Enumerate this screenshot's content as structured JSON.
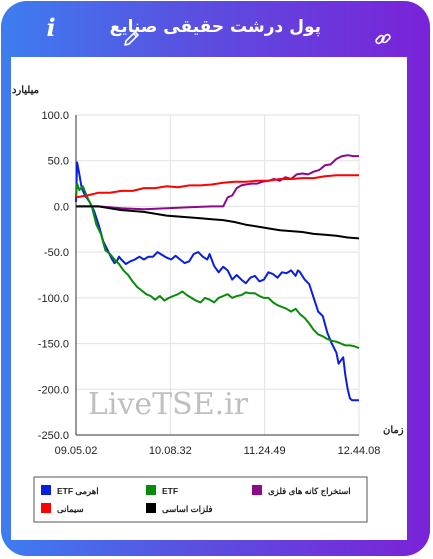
{
  "header": {
    "title": "پول درشت حقیقی صنایع",
    "info_icon": "info-icon",
    "edit_icon": "pencil-icon",
    "link_icon": "link-icon"
  },
  "watermark": "LiveTSE.ir",
  "chart_data": {
    "type": "line",
    "ylabel": "میلیارد تومان",
    "xlabel": "زمان",
    "y_ticks": [
      "100.0",
      "50.0",
      "0.0",
      "-50.0",
      "-100.0",
      "-150.0",
      "-200.0",
      "-250.0"
    ],
    "ylim": [
      -250,
      100
    ],
    "x_ticks": [
      "09.05.02",
      "10.08.32",
      "11.24.49",
      "12.44.08"
    ],
    "grid": true,
    "legend": "bottom",
    "series": [
      {
        "name": "ETF اهرمی",
        "color": "#0a1ee0",
        "points": [
          [
            0,
            5
          ],
          [
            1,
            48
          ],
          [
            3,
            35
          ],
          [
            5,
            20
          ],
          [
            8,
            12
          ],
          [
            12,
            5
          ],
          [
            16,
            -5
          ],
          [
            20,
            -20
          ],
          [
            24,
            -38
          ],
          [
            28,
            -48
          ],
          [
            32,
            -58
          ],
          [
            34,
            -62
          ],
          [
            36,
            -60
          ],
          [
            38,
            -55
          ],
          [
            40,
            -58
          ],
          [
            44,
            -63
          ],
          [
            48,
            -60
          ],
          [
            52,
            -58
          ],
          [
            56,
            -55
          ],
          [
            60,
            -58
          ],
          [
            64,
            -55
          ],
          [
            68,
            -55
          ],
          [
            72,
            -50
          ],
          [
            76,
            -53
          ],
          [
            80,
            -56
          ],
          [
            84,
            -58
          ],
          [
            88,
            -54
          ],
          [
            92,
            -58
          ],
          [
            96,
            -62
          ],
          [
            100,
            -60
          ],
          [
            104,
            -52
          ],
          [
            108,
            -50
          ],
          [
            112,
            -55
          ],
          [
            116,
            -58
          ],
          [
            118,
            -52
          ],
          [
            122,
            -65
          ],
          [
            126,
            -72
          ],
          [
            130,
            -66
          ],
          [
            134,
            -70
          ],
          [
            138,
            -80
          ],
          [
            142,
            -75
          ],
          [
            146,
            -80
          ],
          [
            150,
            -84
          ],
          [
            154,
            -78
          ],
          [
            158,
            -76
          ],
          [
            162,
            -82
          ],
          [
            166,
            -80
          ],
          [
            170,
            -72
          ],
          [
            174,
            -74
          ],
          [
            178,
            -78
          ],
          [
            182,
            -72
          ],
          [
            186,
            -73
          ],
          [
            190,
            -70
          ],
          [
            194,
            -76
          ],
          [
            196,
            -70
          ],
          [
            198,
            -72
          ],
          [
            202,
            -80
          ],
          [
            206,
            -85
          ],
          [
            210,
            -100
          ],
          [
            214,
            -115
          ],
          [
            218,
            -120
          ],
          [
            222,
            -138
          ],
          [
            226,
            -150
          ],
          [
            230,
            -160
          ],
          [
            232,
            -172
          ],
          [
            236,
            -165
          ],
          [
            238,
            -185
          ],
          [
            240,
            -200
          ],
          [
            242,
            -210
          ],
          [
            244,
            -212
          ],
          [
            250,
            -212
          ]
        ]
      },
      {
        "name": "ETF",
        "color": "#0a8a0a",
        "points": [
          [
            0,
            10
          ],
          [
            1,
            25
          ],
          [
            3,
            18
          ],
          [
            6,
            22
          ],
          [
            10,
            10
          ],
          [
            14,
            0
          ],
          [
            18,
            -20
          ],
          [
            22,
            -30
          ],
          [
            26,
            -48
          ],
          [
            30,
            -52
          ],
          [
            34,
            -58
          ],
          [
            38,
            -63
          ],
          [
            42,
            -70
          ],
          [
            46,
            -75
          ],
          [
            50,
            -82
          ],
          [
            54,
            -88
          ],
          [
            58,
            -92
          ],
          [
            62,
            -96
          ],
          [
            66,
            -98
          ],
          [
            70,
            -102
          ],
          [
            74,
            -98
          ],
          [
            78,
            -103
          ],
          [
            82,
            -100
          ],
          [
            86,
            -98
          ],
          [
            90,
            -96
          ],
          [
            94,
            -93
          ],
          [
            98,
            -97
          ],
          [
            102,
            -100
          ],
          [
            106,
            -103
          ],
          [
            110,
            -105
          ],
          [
            114,
            -100
          ],
          [
            118,
            -102
          ],
          [
            122,
            -105
          ],
          [
            126,
            -100
          ],
          [
            130,
            -98
          ],
          [
            134,
            -96
          ],
          [
            138,
            -100
          ],
          [
            142,
            -98
          ],
          [
            146,
            -97
          ],
          [
            150,
            -94
          ],
          [
            154,
            -95
          ],
          [
            158,
            -95
          ],
          [
            162,
            -98
          ],
          [
            166,
            -100
          ],
          [
            170,
            -100
          ],
          [
            174,
            -105
          ],
          [
            178,
            -108
          ],
          [
            182,
            -110
          ],
          [
            186,
            -112
          ],
          [
            190,
            -115
          ],
          [
            194,
            -112
          ],
          [
            198,
            -118
          ],
          [
            202,
            -122
          ],
          [
            206,
            -128
          ],
          [
            210,
            -135
          ],
          [
            214,
            -140
          ],
          [
            218,
            -142
          ],
          [
            222,
            -145
          ],
          [
            226,
            -147
          ],
          [
            230,
            -148
          ],
          [
            234,
            -150
          ],
          [
            238,
            -152
          ],
          [
            242,
            -152
          ],
          [
            246,
            -153
          ],
          [
            250,
            -155
          ]
        ]
      },
      {
        "name": "استخراج کانه های فلزی",
        "color": "#8b0a8b",
        "points": [
          [
            0,
            0
          ],
          [
            20,
            0
          ],
          [
            40,
            -2
          ],
          [
            60,
            -3
          ],
          [
            80,
            -2
          ],
          [
            100,
            -1
          ],
          [
            120,
            0
          ],
          [
            130,
            0
          ],
          [
            134,
            10
          ],
          [
            138,
            12
          ],
          [
            142,
            20
          ],
          [
            146,
            23
          ],
          [
            150,
            24
          ],
          [
            155,
            25
          ],
          [
            160,
            25
          ],
          [
            165,
            27
          ],
          [
            170,
            28
          ],
          [
            175,
            30
          ],
          [
            180,
            28
          ],
          [
            185,
            32
          ],
          [
            190,
            30
          ],
          [
            195,
            35
          ],
          [
            200,
            36
          ],
          [
            205,
            35
          ],
          [
            210,
            38
          ],
          [
            215,
            40
          ],
          [
            220,
            45
          ],
          [
            225,
            46
          ],
          [
            230,
            52
          ],
          [
            235,
            55
          ],
          [
            240,
            56
          ],
          [
            245,
            55
          ],
          [
            250,
            55
          ]
        ]
      },
      {
        "name": "سیمانی",
        "color": "#ff0000",
        "points": [
          [
            0,
            10
          ],
          [
            10,
            12
          ],
          [
            20,
            15
          ],
          [
            30,
            15
          ],
          [
            40,
            17
          ],
          [
            50,
            17
          ],
          [
            60,
            20
          ],
          [
            70,
            20
          ],
          [
            80,
            22
          ],
          [
            90,
            21
          ],
          [
            100,
            23
          ],
          [
            110,
            23
          ],
          [
            120,
            24
          ],
          [
            130,
            26
          ],
          [
            140,
            27
          ],
          [
            150,
            27
          ],
          [
            160,
            28
          ],
          [
            170,
            28
          ],
          [
            180,
            30
          ],
          [
            190,
            30
          ],
          [
            200,
            31
          ],
          [
            210,
            31
          ],
          [
            220,
            33
          ],
          [
            230,
            34
          ],
          [
            240,
            34
          ],
          [
            250,
            34
          ]
        ]
      },
      {
        "name": "فلزات اساسی",
        "color": "#000000",
        "points": [
          [
            0,
            0
          ],
          [
            10,
            0
          ],
          [
            20,
            0
          ],
          [
            30,
            -2
          ],
          [
            40,
            -4
          ],
          [
            50,
            -5
          ],
          [
            60,
            -6
          ],
          [
            70,
            -8
          ],
          [
            80,
            -10
          ],
          [
            90,
            -11
          ],
          [
            100,
            -12
          ],
          [
            110,
            -13
          ],
          [
            120,
            -14
          ],
          [
            130,
            -15
          ],
          [
            140,
            -17
          ],
          [
            150,
            -20
          ],
          [
            160,
            -22
          ],
          [
            170,
            -24
          ],
          [
            180,
            -26
          ],
          [
            190,
            -27
          ],
          [
            200,
            -28
          ],
          [
            210,
            -30
          ],
          [
            220,
            -31
          ],
          [
            230,
            -32
          ],
          [
            240,
            -34
          ],
          [
            250,
            -35
          ]
        ]
      }
    ],
    "x_range": [
      0,
      250
    ]
  }
}
